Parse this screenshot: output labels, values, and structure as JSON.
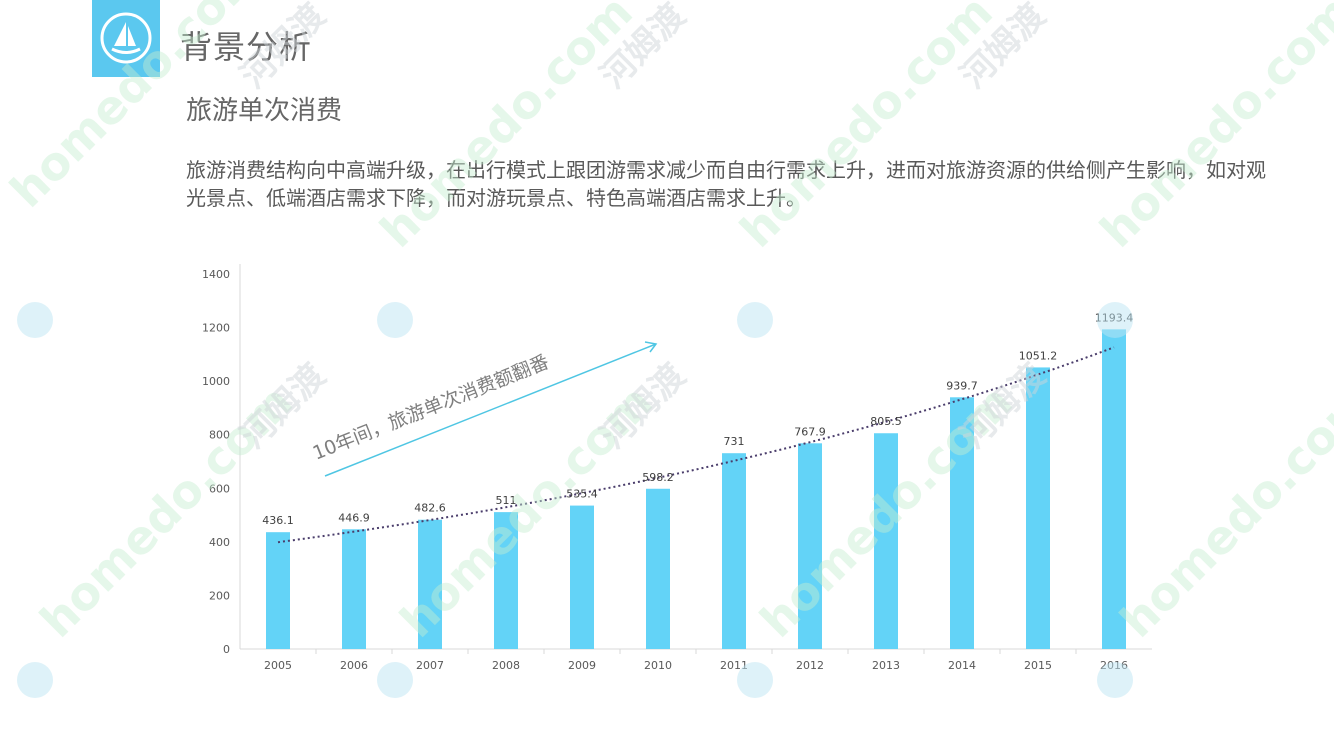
{
  "header": {
    "section_title": "背景分析",
    "icon": "sailboat-icon",
    "accent_color": "#5bc8ef"
  },
  "subtitle": "旅游单次消费",
  "paragraph": "旅游消费结构向中高端升级，在出行模式上跟团游需求减少而自由行需求上升，进而对旅游资源的供给侧产生影响，如对观光景点、低端酒店需求下降，而对游玩景点、特色高端酒店需求上升。",
  "chart_data": {
    "type": "bar",
    "categories": [
      "2005",
      "2006",
      "2007",
      "2008",
      "2009",
      "2010",
      "2011",
      "2012",
      "2013",
      "2014",
      "2015",
      "2016"
    ],
    "values": [
      436.1,
      446.9,
      482.6,
      511,
      535.4,
      598.2,
      731,
      767.9,
      805.5,
      939.7,
      1051.2,
      1193.4
    ],
    "value_labels": [
      "436.1",
      "446.9",
      "482.6",
      "511",
      "535.4",
      "598.2",
      "731",
      "767.9",
      "805.5",
      "939.7",
      "1051.2",
      "1193.4"
    ],
    "ylim": [
      0,
      1400
    ],
    "yticks": [
      0,
      200,
      400,
      600,
      800,
      1000,
      1200,
      1400
    ],
    "trendline": "exponential-dotted",
    "bar_color": "#63d3f7",
    "trend_color": "#4a3d6b",
    "annotation": {
      "text": "10年间，旅游单次消费额翻番",
      "arrow_color": "#4fc6e3"
    }
  }
}
